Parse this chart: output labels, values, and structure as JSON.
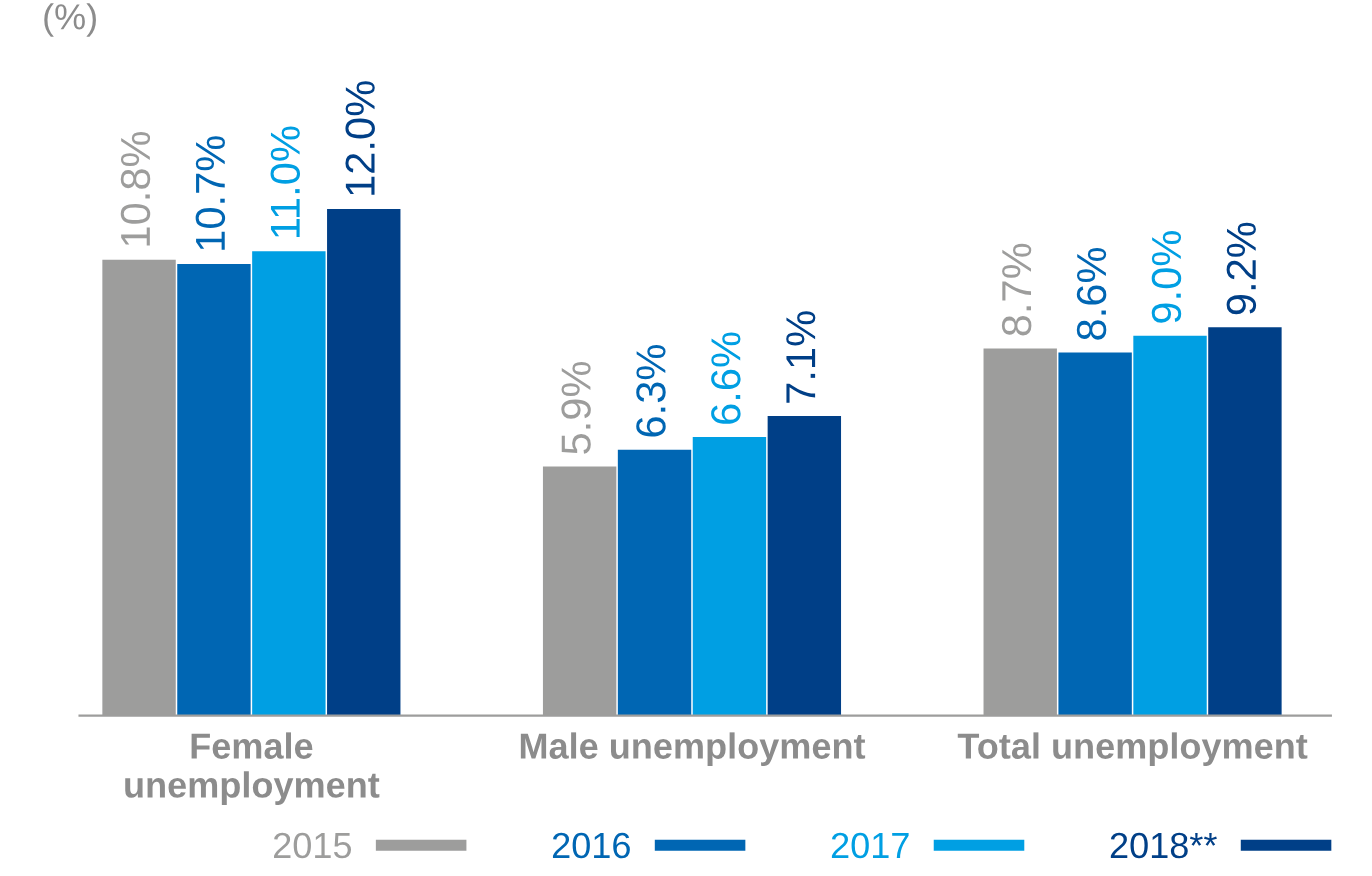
{
  "chart_data": {
    "type": "bar",
    "ylabel": "(%)",
    "categories": [
      "Female\nunemployment",
      "Male unemployment",
      "Total unemployment"
    ],
    "series": [
      {
        "name": "2015",
        "color": "#9d9d9c",
        "values": [
          10.8,
          5.9,
          8.7
        ],
        "value_labels": [
          "10.8%",
          "5.9%",
          "8.7%"
        ]
      },
      {
        "name": "2016",
        "color": "#0066b3",
        "values": [
          10.7,
          6.3,
          8.6
        ],
        "value_labels": [
          "10.7%",
          "6.3%",
          "8.6%"
        ]
      },
      {
        "name": "2017",
        "color": "#009fe3",
        "values": [
          11.0,
          6.6,
          9.0
        ],
        "value_labels": [
          "11.0%",
          "6.6%",
          "9.0%"
        ]
      },
      {
        "name": "2018**",
        "color": "#003f87",
        "values": [
          12.0,
          7.1,
          9.2
        ],
        "value_labels": [
          "12.0%",
          "7.1%",
          "9.2%"
        ]
      }
    ],
    "grid": false,
    "legend": "bottom right",
    "tick_labels": "x"
  }
}
